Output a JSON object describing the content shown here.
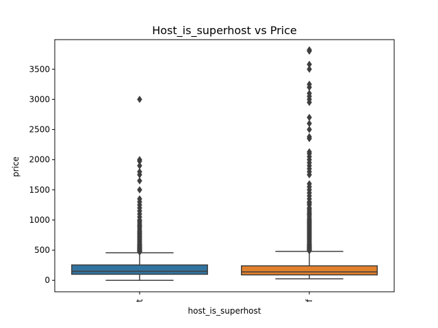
{
  "chart_data": {
    "type": "boxplot",
    "title": "Host_is_superhost vs Price",
    "xlabel": "host_is_superhost",
    "ylabel": "price",
    "ylim": [
      -190,
      3990
    ],
    "yticks": [
      0,
      500,
      1000,
      1500,
      2000,
      2500,
      3000,
      3500
    ],
    "grid": false,
    "categories": [
      "t",
      "f"
    ],
    "colors": {
      "t": "#3274a1",
      "f": "#e1812c",
      "line": "#3f3f3f"
    },
    "boxes": [
      {
        "category": "t",
        "q1": 100,
        "median": 150,
        "q3": 255,
        "whisker_low": 0,
        "whisker_high": 457,
        "outliers": [
          470,
          480,
          490,
          500,
          510,
          520,
          530,
          540,
          550,
          560,
          575,
          590,
          600,
          620,
          640,
          660,
          680,
          700,
          720,
          740,
          760,
          780,
          800,
          820,
          850,
          880,
          900,
          920,
          950,
          980,
          1000,
          1050,
          1100,
          1150,
          1200,
          1250,
          1300,
          1350,
          1500,
          1650,
          1750,
          1800,
          1900,
          1975,
          2000,
          3000
        ]
      },
      {
        "category": "f",
        "q1": 90,
        "median": 140,
        "q3": 240,
        "whisker_low": 25,
        "whisker_high": 480,
        "outliers": [
          490,
          500,
          510,
          520,
          530,
          540,
          550,
          560,
          575,
          590,
          600,
          620,
          640,
          660,
          680,
          700,
          720,
          740,
          760,
          780,
          800,
          820,
          840,
          860,
          880,
          900,
          920,
          940,
          960,
          980,
          1000,
          1020,
          1050,
          1080,
          1100,
          1120,
          1150,
          1180,
          1200,
          1250,
          1280,
          1300,
          1350,
          1400,
          1450,
          1500,
          1550,
          1600,
          1750,
          1800,
          1850,
          1900,
          1950,
          2000,
          2050,
          2100,
          2130,
          2350,
          2380,
          2500,
          2600,
          2700,
          2950,
          3000,
          3050,
          3100,
          3200,
          3250,
          3500,
          3580,
          3800,
          3820
        ]
      }
    ]
  }
}
